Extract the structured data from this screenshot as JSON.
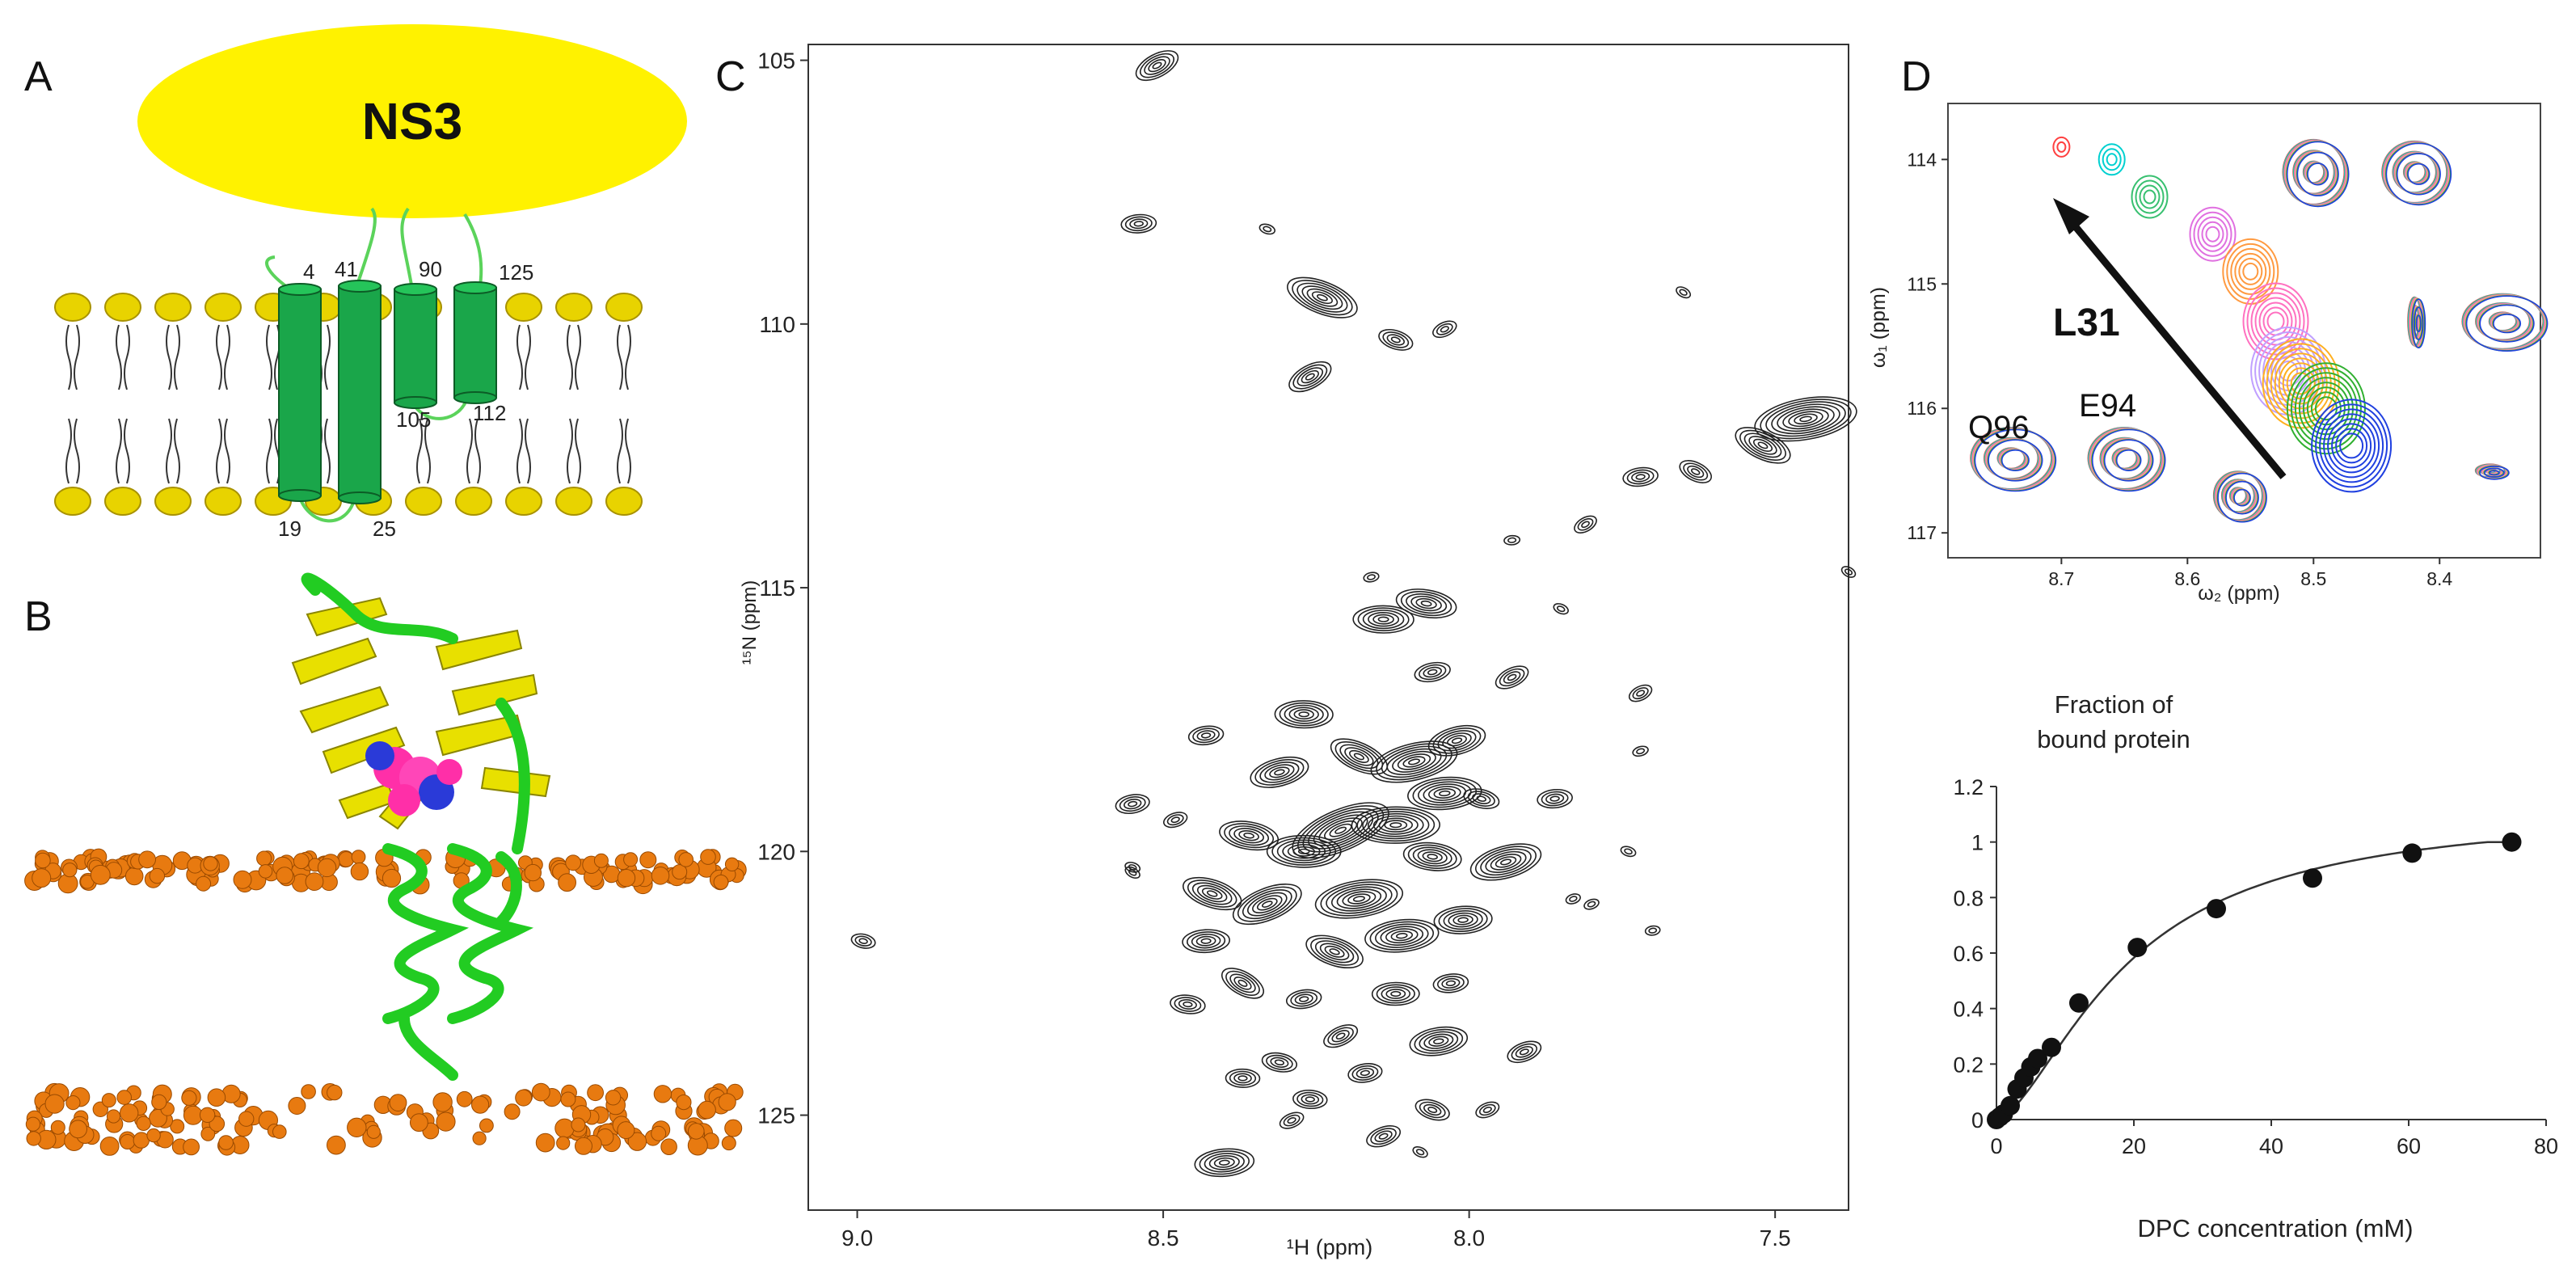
{
  "figure": {
    "panel_a": {
      "letter": "A",
      "protein": "NS3",
      "residues": [
        "4",
        "41",
        "90",
        "125",
        "19",
        "25",
        "105",
        "112"
      ]
    },
    "panel_b": {
      "letter": "B"
    },
    "panel_c": {
      "letter": "C",
      "xlabel": "¹H (ppm)",
      "ylabel": "¹⁵N (ppm)",
      "xticks": [
        "9.0",
        "8.5",
        "8.0",
        "7.5"
      ],
      "yticks": [
        "105",
        "110",
        "115",
        "120",
        "125"
      ]
    },
    "panel_d": {
      "letter": "D",
      "xlabel": "ω₂ (ppm)",
      "ylabel": "ω₁ (ppm)",
      "xticks": [
        "8.7",
        "8.6",
        "8.5",
        "8.4"
      ],
      "yticks": [
        "114",
        "115",
        "116",
        "117"
      ],
      "labels": [
        "L31",
        "Q96",
        "E94"
      ]
    }
  },
  "chart_data": [
    {
      "type": "scatter",
      "title": "Fraction of bound protein",
      "title_lines": [
        "Fraction of",
        "bound protein"
      ],
      "xlabel": "DPC concentration (mM)",
      "ylabel": "Fraction of bound protein",
      "xlim": [
        0,
        80
      ],
      "ylim": [
        0,
        1.2
      ],
      "xticks": [
        "0",
        "20",
        "40",
        "60",
        "80"
      ],
      "yticks": [
        "0",
        "0.2",
        "0.4",
        "0.6",
        "0.8",
        "1",
        "1.2"
      ],
      "x": [
        0,
        0.5,
        1,
        2,
        3,
        4,
        5,
        6,
        8,
        12,
        20.5,
        32,
        46,
        60.5,
        75
      ],
      "y": [
        0,
        0.01,
        0.02,
        0.05,
        0.11,
        0.15,
        0.19,
        0.22,
        0.26,
        0.42,
        0.62,
        0.76,
        0.87,
        0.96,
        1.0
      ],
      "fit": "sigmoidal curve through points"
    }
  ],
  "colors": {
    "ns3": "#fff200",
    "helix": "#1aa64a",
    "lipid_head": "#e8d300",
    "ribbon_green": "#22cc22",
    "sheet_yellow": "#e8e000",
    "lipid_sphere": "#e87a10"
  }
}
